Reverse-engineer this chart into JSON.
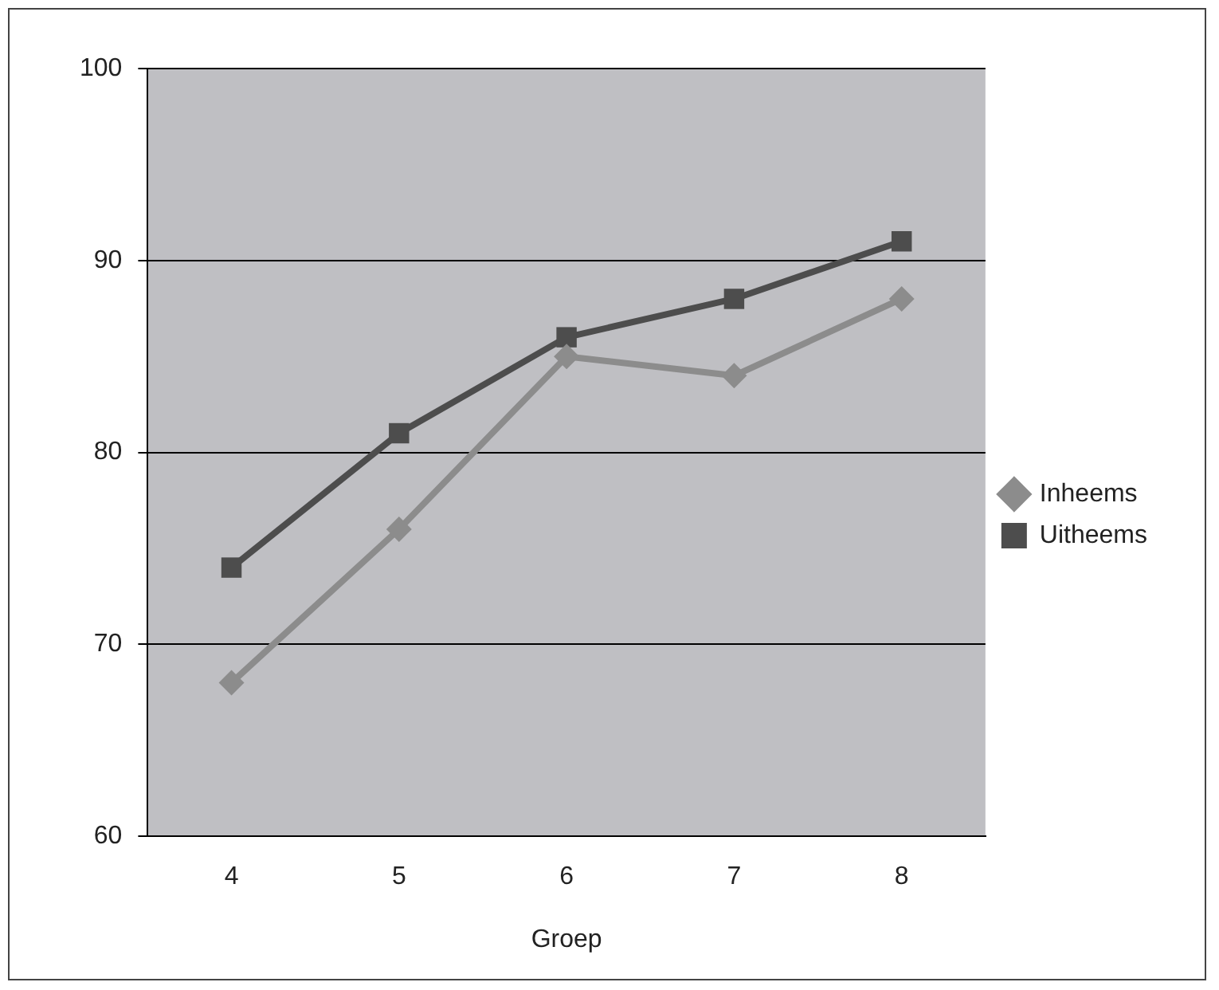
{
  "chart_data": {
    "type": "line",
    "xlabel": "Groep",
    "categories": [
      "4",
      "5",
      "6",
      "7",
      "8"
    ],
    "series": [
      {
        "name": "Inheems",
        "color": "#8c8c8c",
        "marker": "diamond",
        "values": [
          68,
          76,
          85,
          84,
          88
        ]
      },
      {
        "name": "Uitheems",
        "color": "#4d4d4d",
        "marker": "square",
        "values": [
          74,
          81,
          86,
          88,
          91
        ]
      }
    ],
    "ylim": [
      60,
      100
    ],
    "yticks": [
      60,
      70,
      80,
      90,
      100
    ],
    "grid": "y",
    "legend": "right",
    "line_style": "solid"
  }
}
